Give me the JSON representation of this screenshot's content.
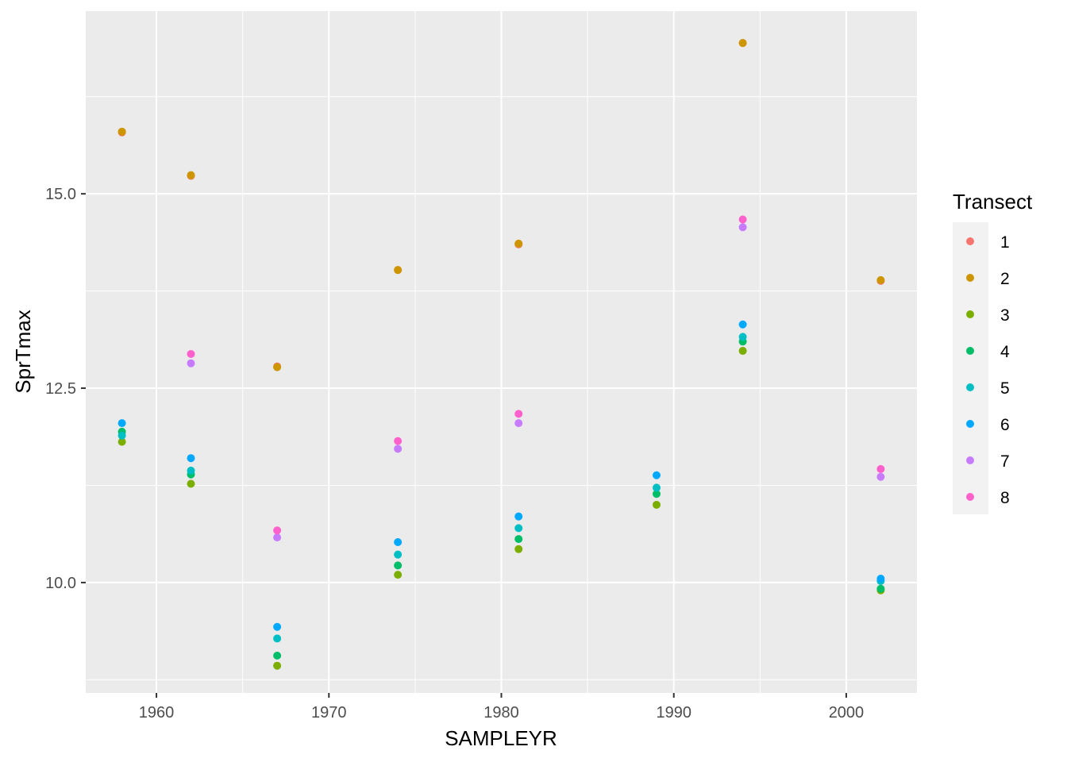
{
  "chart_data": {
    "type": "scatter",
    "xlabel": "SAMPLEYR",
    "ylabel": "SprTmax",
    "xlim": [
      1955.9,
      2004.1
    ],
    "ylim": [
      8.58,
      17.35
    ],
    "x_ticks": [
      1960,
      1970,
      1980,
      1990,
      2000
    ],
    "x_tick_labels": [
      "1960",
      "1970",
      "1980",
      "1990",
      "2000"
    ],
    "y_ticks": [
      10.0,
      12.5,
      15.0
    ],
    "y_tick_labels": [
      "10.0",
      "12.5",
      "15.0"
    ],
    "grid": true,
    "panel_background": "#ebebeb",
    "grid_color": "#ffffff",
    "legend": {
      "title": "Transect",
      "position": "right",
      "entries": [
        {
          "label": "1",
          "color": "#F8766D"
        },
        {
          "label": "2",
          "color": "#CD9600"
        },
        {
          "label": "3",
          "color": "#7CAE00"
        },
        {
          "label": "4",
          "color": "#00BE67"
        },
        {
          "label": "5",
          "color": "#00BFC4"
        },
        {
          "label": "6",
          "color": "#00A9FF"
        },
        {
          "label": "7",
          "color": "#C77CFF"
        },
        {
          "label": "8",
          "color": "#FF61CC"
        }
      ]
    },
    "series": [
      {
        "name": "1",
        "color": "#F8766D",
        "x": [
          1958,
          1962,
          1967,
          1974,
          1981,
          1994,
          2002
        ],
        "y": [
          15.79,
          15.23,
          12.78,
          14.02,
          14.35,
          16.94,
          13.88
        ]
      },
      {
        "name": "2",
        "color": "#CD9600",
        "x": [
          1958,
          1962,
          1967,
          1974,
          1981,
          1994,
          2002
        ],
        "y": [
          15.8,
          15.24,
          12.77,
          14.02,
          14.36,
          16.94,
          13.89
        ]
      },
      {
        "name": "3",
        "color": "#7CAE00",
        "x": [
          1958,
          1962,
          1967,
          1974,
          1981,
          1989,
          1994,
          2002
        ],
        "y": [
          11.81,
          11.27,
          8.93,
          10.1,
          10.43,
          11.0,
          12.98,
          9.9
        ]
      },
      {
        "name": "4",
        "color": "#00BE67",
        "x": [
          1958,
          1962,
          1967,
          1974,
          1981,
          1989,
          1994,
          2002
        ],
        "y": [
          11.94,
          11.39,
          9.06,
          10.22,
          10.56,
          11.14,
          13.1,
          9.92
        ]
      },
      {
        "name": "5",
        "color": "#00BFC4",
        "x": [
          1958,
          1962,
          1967,
          1974,
          1981,
          1989,
          1994,
          2002
        ],
        "y": [
          11.89,
          11.44,
          9.28,
          10.36,
          10.7,
          11.22,
          13.16,
          10.02
        ]
      },
      {
        "name": "6",
        "color": "#00A9FF",
        "x": [
          1958,
          1962,
          1967,
          1974,
          1981,
          1989,
          1994,
          2002
        ],
        "y": [
          12.05,
          11.6,
          9.43,
          10.52,
          10.85,
          11.38,
          13.32,
          10.05
        ]
      },
      {
        "name": "7",
        "color": "#C77CFF",
        "x": [
          1962,
          1967,
          1974,
          1981,
          1994,
          2002
        ],
        "y": [
          12.82,
          10.58,
          11.72,
          12.05,
          14.57,
          11.36
        ]
      },
      {
        "name": "8",
        "color": "#FF61CC",
        "x": [
          1962,
          1967,
          1974,
          1981,
          1994,
          2002
        ],
        "y": [
          12.94,
          10.67,
          11.82,
          12.17,
          14.67,
          11.46
        ]
      }
    ]
  }
}
